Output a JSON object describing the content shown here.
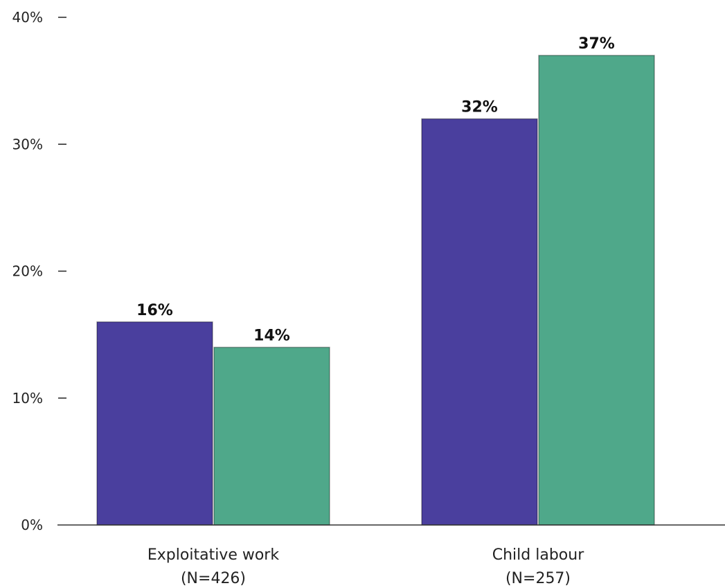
{
  "chart_data": {
    "type": "bar",
    "categories": [
      [
        "Exploitative work",
        "(N=426)"
      ],
      [
        "Child labour",
        "(N=257)"
      ]
    ],
    "series": [
      {
        "color": "#4a3f9e",
        "values": [
          16,
          32
        ],
        "labels": [
          "16%",
          "32%"
        ]
      },
      {
        "color": "#4fa88a",
        "values": [
          14,
          37
        ],
        "labels": [
          "14%",
          "37%"
        ]
      }
    ],
    "ylim": [
      0,
      40
    ],
    "yticks": [
      0,
      10,
      20,
      30,
      40
    ],
    "ytick_labels": [
      "0%",
      "10%",
      "20%",
      "30%",
      "40%"
    ],
    "title": "",
    "xlabel": "",
    "ylabel": "",
    "legend": "none",
    "grid": false
  }
}
